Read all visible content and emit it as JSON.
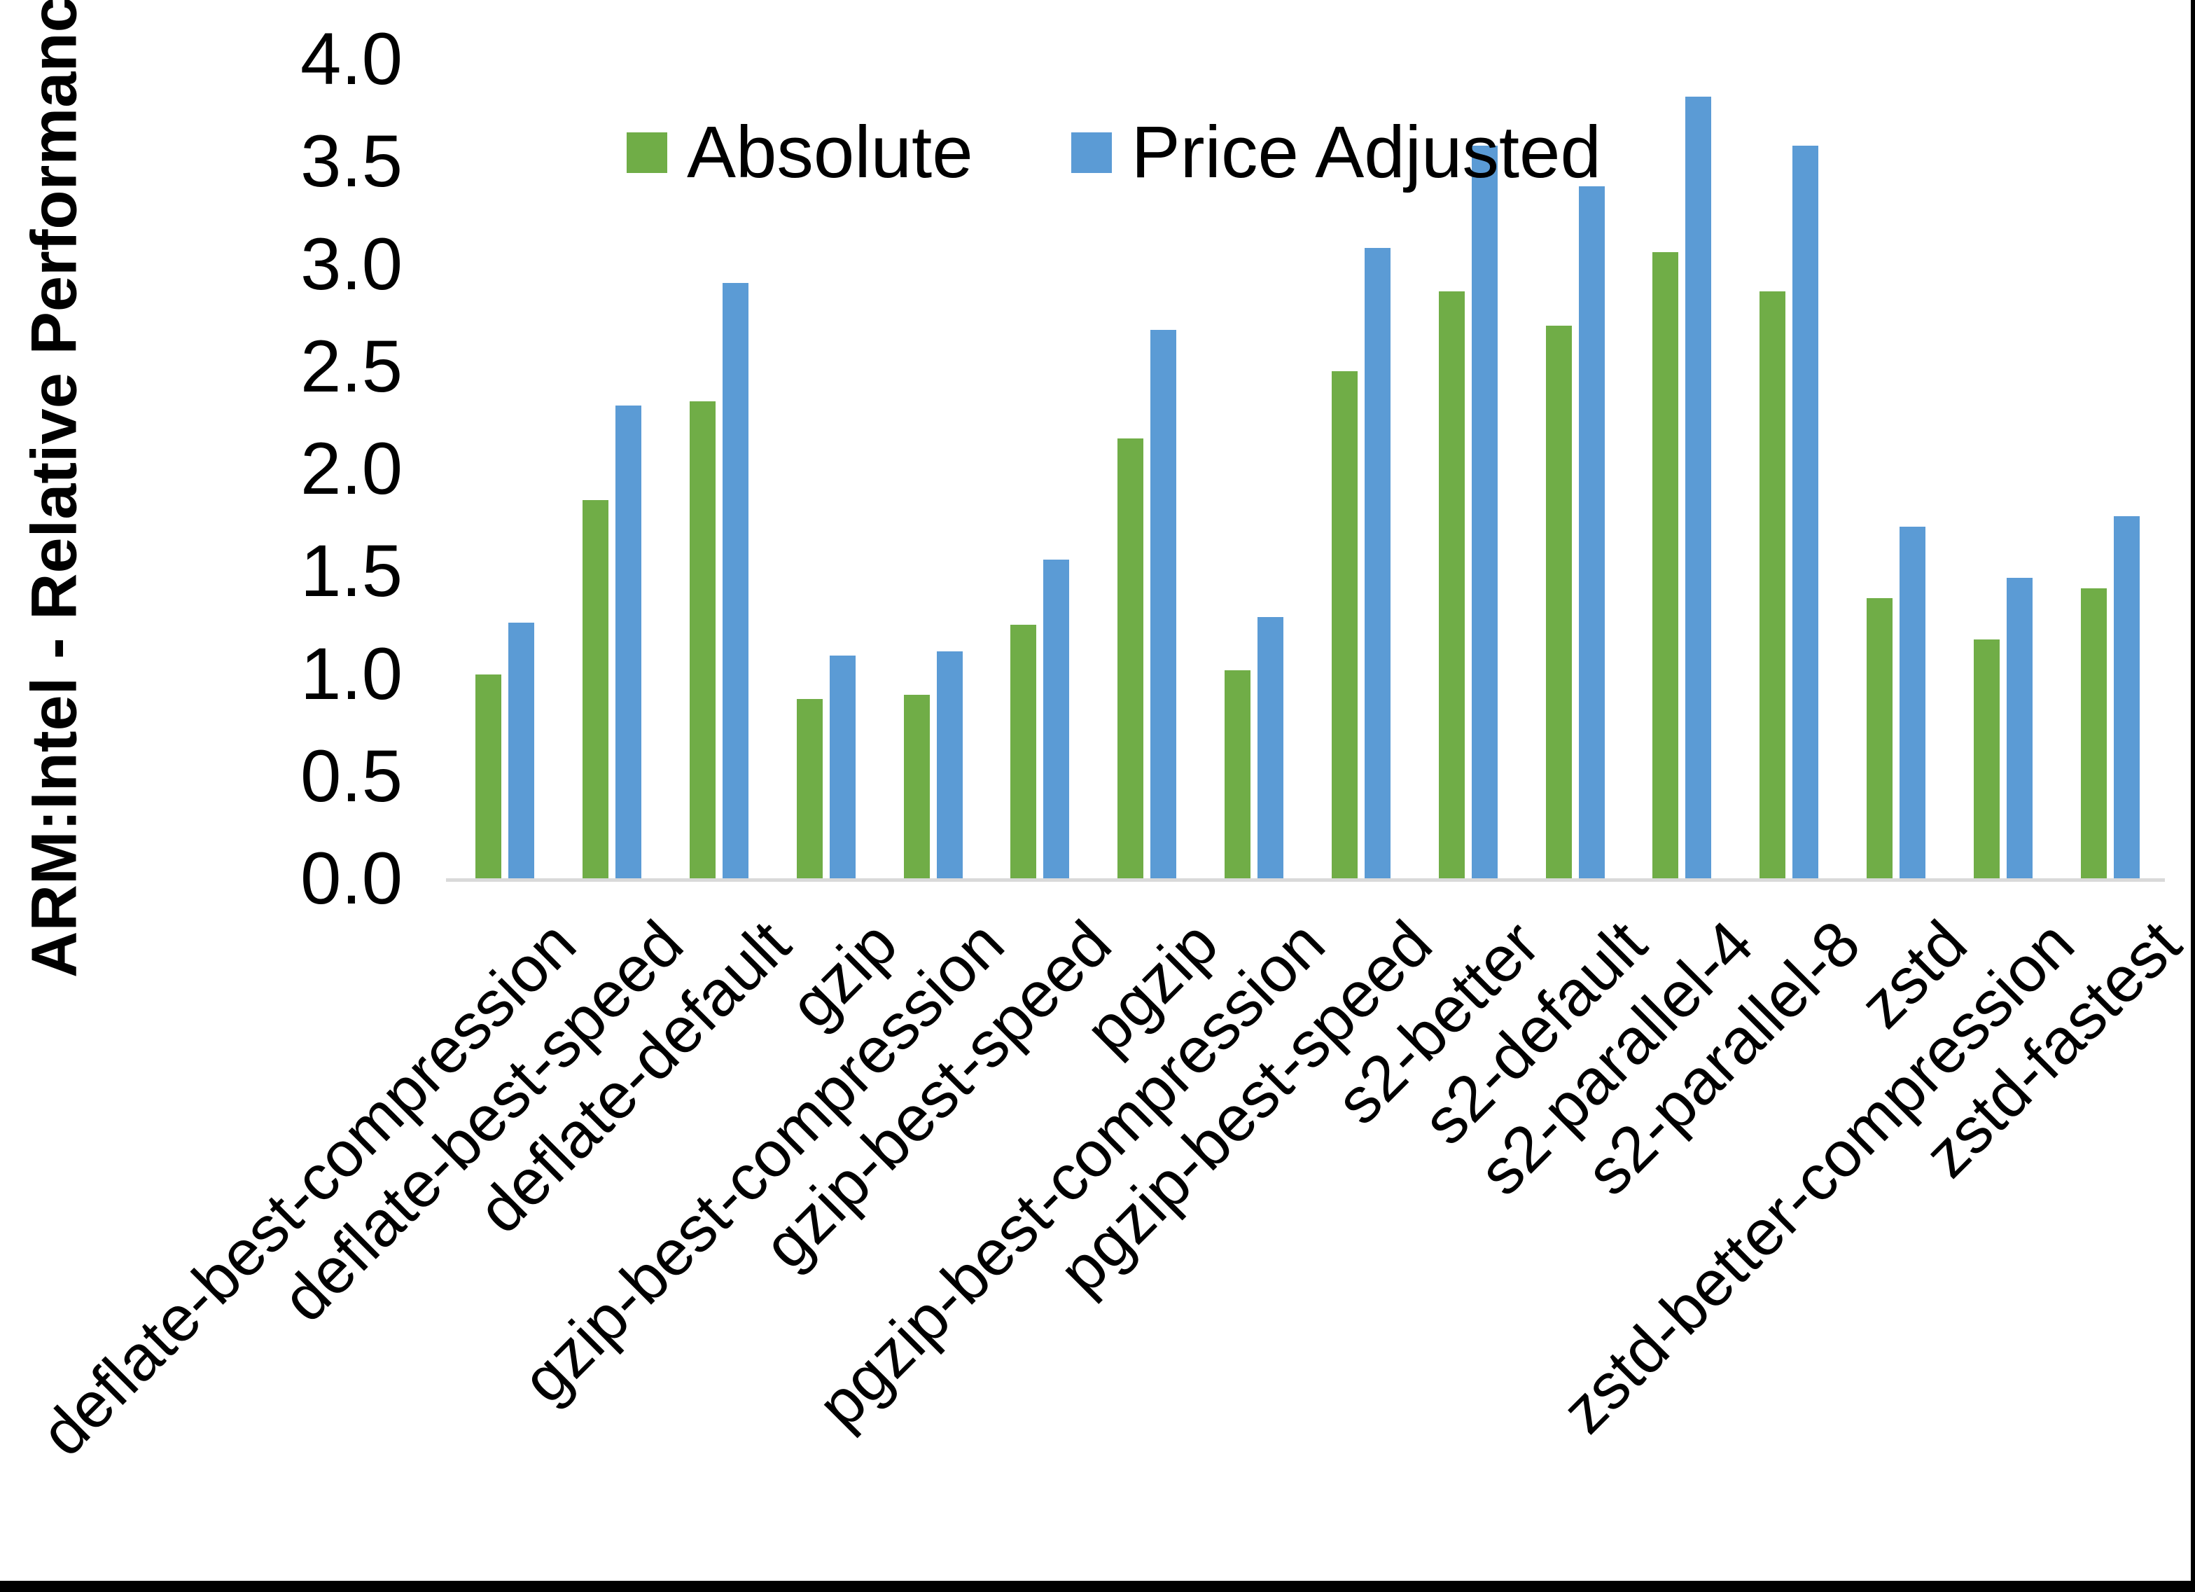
{
  "page": {
    "background": "#ffffff",
    "right_border_color": "#000000",
    "bottom_border_color": "#000000"
  },
  "chart_data": {
    "type": "bar",
    "title": "",
    "xlabel": "",
    "ylabel": "ARM:Intel - Relative Performance",
    "ylim": [
      0,
      4
    ],
    "ytick_step": 0.5,
    "yticks": [
      "4.0",
      "3.5",
      "3.0",
      "2.5",
      "2.0",
      "1.5",
      "1.0",
      "0.5",
      "0.0"
    ],
    "grid": false,
    "legend_position": "top-center",
    "axis_line_color": "#d9d9d9",
    "text_color": "#000000",
    "categories": [
      "deflate-best-compression",
      "deflate-best-speed",
      "deflate-default",
      "gzip",
      "gzip-best-compression",
      "gzip-best-speed",
      "pgzip",
      "pgzip-best-compression",
      "pgzip-best-speed",
      "s2-better",
      "s2-default",
      "s2-parallel-4",
      "s2-parallel-8",
      "zstd",
      "zstd-better-compression",
      "zstd-fastest"
    ],
    "series": [
      {
        "name": "Absolute",
        "color": "#70AD47",
        "values": [
          1.0,
          1.85,
          2.33,
          0.88,
          0.9,
          1.24,
          2.15,
          1.02,
          2.48,
          2.87,
          2.7,
          3.06,
          2.87,
          1.37,
          1.17,
          1.42
        ]
      },
      {
        "name": "Price Adjusted",
        "color": "#5B9BD5",
        "values": [
          1.25,
          2.31,
          2.91,
          1.09,
          1.11,
          1.56,
          2.68,
          1.28,
          3.08,
          3.58,
          3.38,
          3.82,
          3.58,
          1.72,
          1.47,
          1.77
        ]
      }
    ]
  }
}
